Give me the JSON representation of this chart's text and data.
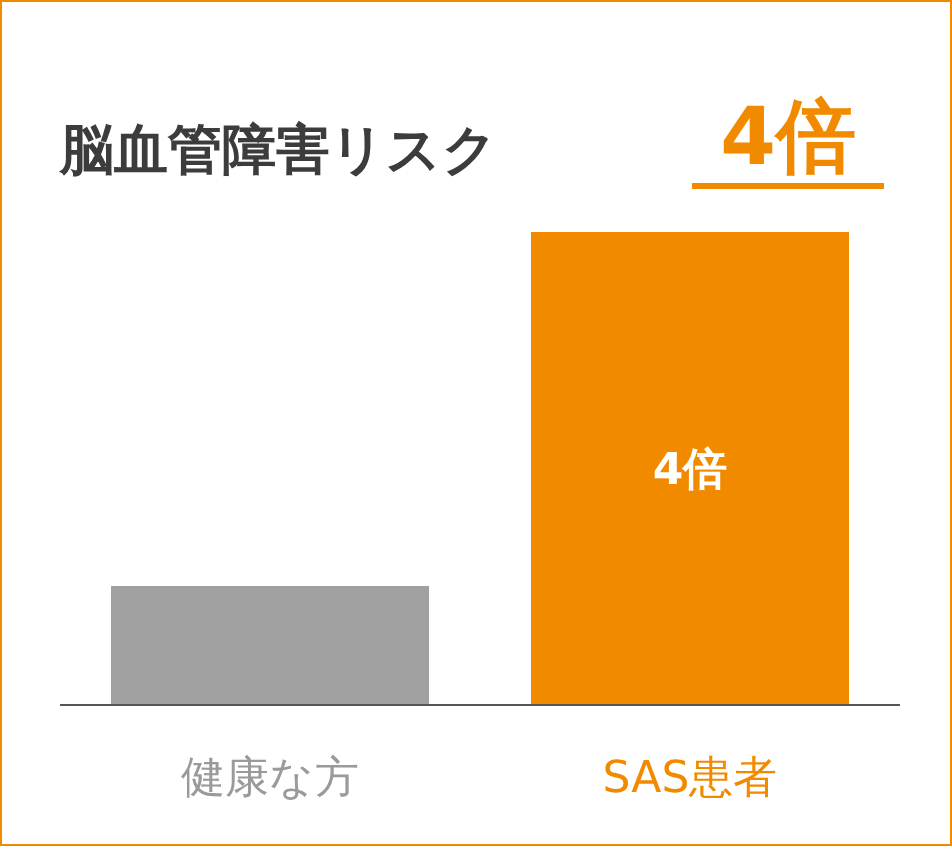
{
  "chart_data": {
    "type": "bar",
    "title": "脳血管障害リスク",
    "annotations": [
      "4倍"
    ],
    "categories": [
      "健康な方",
      "SAS患者"
    ],
    "values": [
      1,
      4
    ],
    "colors": [
      "#a0a0a0",
      "#f28a00"
    ],
    "value_labels": [
      null,
      "4倍"
    ]
  }
}
